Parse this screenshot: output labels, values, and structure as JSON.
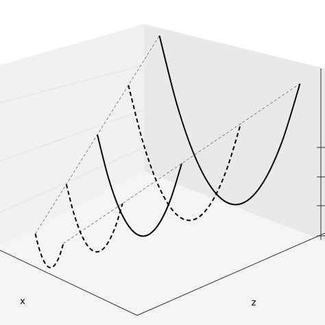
{
  "chart_data": {
    "type": "line3d",
    "xlabel": "x",
    "zlabel": "z",
    "series": [
      {
        "x": 1,
        "linestyle": "dashed",
        "color": "#000000",
        "z": [
          -1,
          -0.75,
          -0.5,
          -0.25,
          0,
          0.25,
          0.5,
          0.75,
          1
        ],
        "values": [
          1,
          0.5625,
          0.25,
          0.0625,
          0,
          0.0625,
          0.25,
          0.5625,
          1
        ]
      },
      {
        "x": 2,
        "linestyle": "dashed",
        "color": "#000000",
        "z": [
          -2,
          -1.5,
          -1,
          -0.5,
          0,
          0.5,
          1,
          1.5,
          2
        ],
        "values": [
          2,
          1.125,
          0.5,
          0.125,
          0,
          0.125,
          0.5,
          1.125,
          2
        ]
      },
      {
        "x": 3,
        "linestyle": "solid",
        "color": "#000000",
        "z": [
          -3,
          -2.25,
          -1.5,
          -0.75,
          0,
          0.75,
          1.5,
          2.25,
          3
        ],
        "values": [
          3,
          1.6875,
          0.75,
          0.1875,
          0,
          0.1875,
          0.75,
          1.6875,
          3
        ]
      },
      {
        "x": 4,
        "linestyle": "dashed",
        "color": "#000000",
        "z": [
          -4,
          -3,
          -2,
          -1,
          0,
          1,
          2,
          3,
          4
        ],
        "values": [
          4,
          2.25,
          1,
          0.25,
          0,
          0.25,
          1,
          2.25,
          4
        ]
      },
      {
        "x": 5,
        "linestyle": "solid",
        "color": "#000000",
        "z": [
          -5,
          -3.75,
          -2.5,
          -1.25,
          0,
          1.25,
          2.5,
          3.75,
          5
        ],
        "values": [
          5,
          2.8125,
          1.25,
          0.3125,
          0,
          0.3125,
          1.25,
          2.8125,
          5
        ]
      }
    ]
  }
}
